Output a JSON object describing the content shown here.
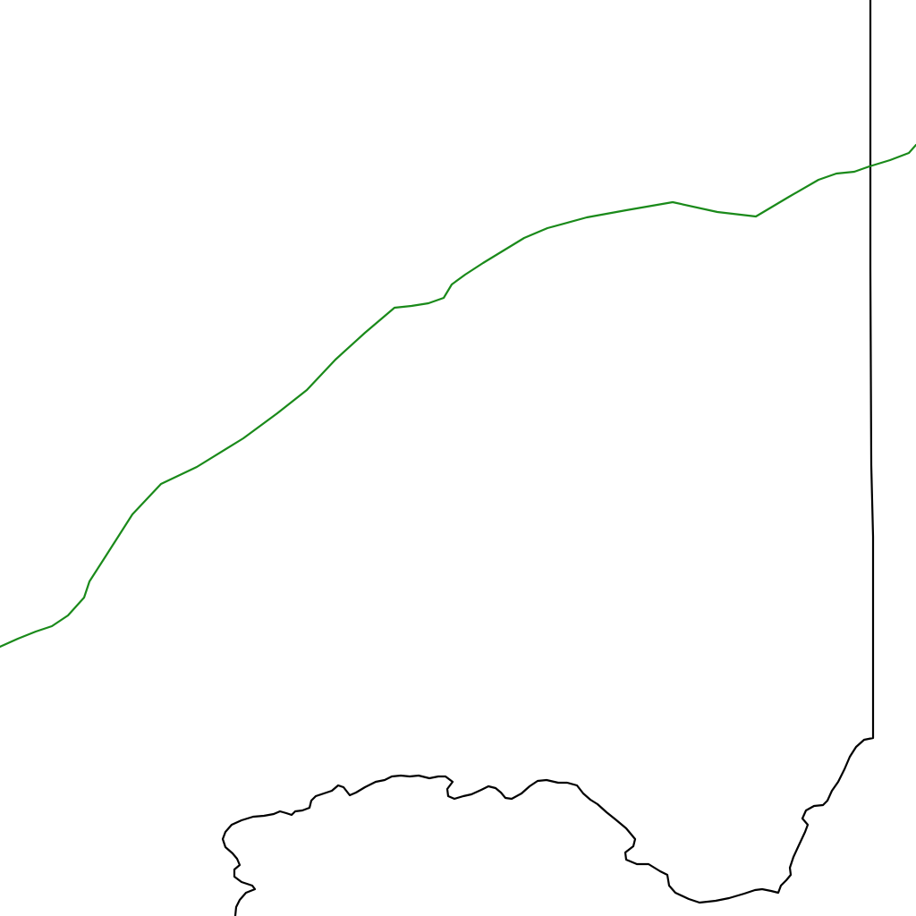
{
  "map": {
    "background_color": "#ffffff",
    "boundary_color": "#000000",
    "route_color": "#1a8a1a",
    "features": [
      "boundary-outline",
      "route-line"
    ]
  }
}
